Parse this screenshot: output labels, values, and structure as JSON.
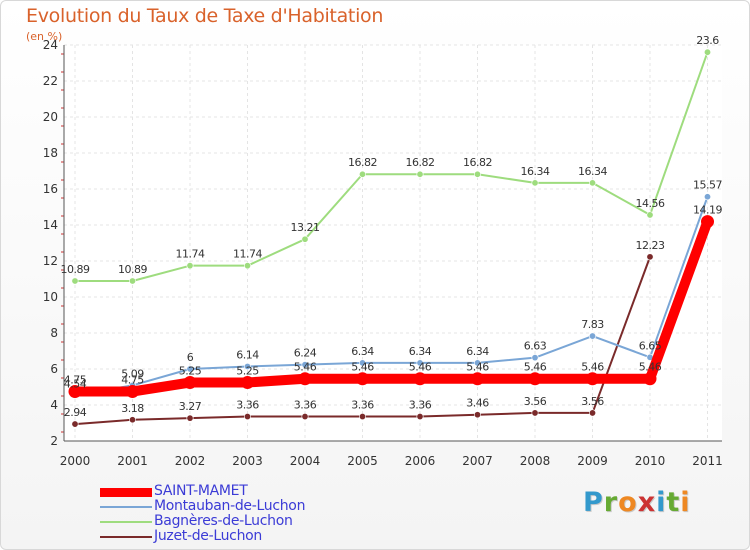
{
  "title": "Evolution du Taux de Taxe d'Habitation",
  "subtitle": "(en %)",
  "logo": {
    "text": "Proxiti",
    "colors": [
      "#3399cc",
      "#66aa33",
      "#ee8822",
      "#cc3333",
      "#3399cc",
      "#66aa33",
      "#ee8822"
    ]
  },
  "chart_data": {
    "type": "line",
    "x": [
      "2000",
      "2001",
      "2002",
      "2003",
      "2004",
      "2005",
      "2006",
      "2007",
      "2008",
      "2009",
      "2010",
      "2011"
    ],
    "ylim": [
      2,
      24
    ],
    "yticks": [
      2,
      4,
      6,
      8,
      10,
      12,
      14,
      16,
      18,
      20,
      22,
      24
    ],
    "grid": true,
    "legend_position": "bottom-left",
    "series": [
      {
        "name": "SAINT-MAMET",
        "color": "#ff0000",
        "values": [
          4.75,
          4.75,
          5.25,
          5.25,
          5.46,
          5.46,
          5.46,
          5.46,
          5.46,
          5.46,
          5.46,
          14.19
        ],
        "labels": [
          "4.75",
          "4.75",
          "5.25",
          "5.25",
          "5.46",
          "5.46",
          "5.46",
          "5.46",
          "5.46",
          "5.46",
          "5.46",
          "14.19"
        ]
      },
      {
        "name": "Montauban-de-Luchon",
        "color": "#7aa6d6",
        "values": [
          4.54,
          5.09,
          6,
          6.14,
          6.24,
          6.34,
          6.34,
          6.34,
          6.63,
          7.83,
          6.65,
          15.57
        ],
        "labels": [
          "4.54",
          "5.09",
          "6",
          "6.14",
          "6.24",
          "6.34",
          "6.34",
          "6.34",
          "6.63",
          "7.83",
          "6.65",
          "15.57"
        ]
      },
      {
        "name": "Bagnères-de-Luchon",
        "color": "#9edc7e",
        "values": [
          10.89,
          10.89,
          11.74,
          11.74,
          13.21,
          16.82,
          16.82,
          16.82,
          16.34,
          16.34,
          14.56,
          23.6
        ],
        "labels": [
          "10.89",
          "10.89",
          "11.74",
          "11.74",
          "13.21",
          "16.82",
          "16.82",
          "16.82",
          "16.34",
          "16.34",
          "14.56",
          "23.6"
        ]
      },
      {
        "name": "Juzet-de-Luchon",
        "color": "#7a2a2a",
        "values": [
          2.94,
          3.18,
          3.27,
          3.36,
          3.36,
          3.36,
          3.36,
          3.46,
          3.56,
          3.56,
          12.23,
          null
        ],
        "labels": [
          "2.94",
          "3.18",
          "3.27",
          "3.36",
          "3.36",
          "3.36",
          "3.36",
          "3.46",
          "3.56",
          "3.56",
          "12.23",
          ""
        ]
      }
    ]
  }
}
